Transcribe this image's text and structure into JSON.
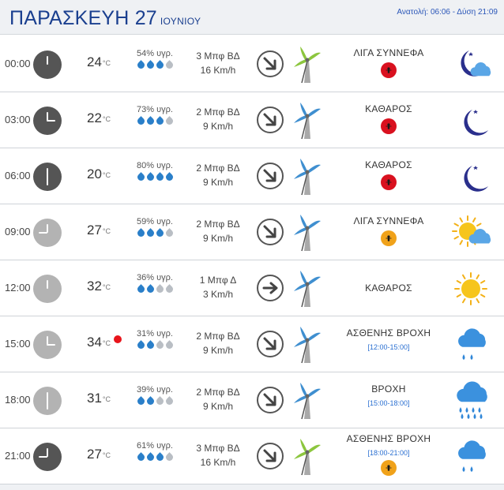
{
  "header": {
    "day": "ΠΑΡΑΣΚΕΥΗ 27",
    "month": "ΙΟΥΝΙΟΥ",
    "sun_times": "Ανατολή: 06:06  - Δύση 21:09"
  },
  "units": {
    "degree": "°C"
  },
  "colors": {
    "title_blue": "#1a3f8f",
    "drop_on": "#2a7fc9",
    "drop_off": "#b9bec4",
    "alert_red": "#d9111f",
    "alert_orange": "#f0a21a",
    "period_blue": "#2a6fd1"
  },
  "rows": [
    {
      "time": "00:00",
      "clock_type": "night",
      "temp": "24",
      "warning": false,
      "humidity": "54% υγρ.",
      "drops_filled": 3,
      "wind_bft": "3 Μπφ ΒΔ",
      "wind_kmh": "16 Km/h",
      "wind_dir": "arrow-down-right-icon",
      "turbine": "turbine-green-icon",
      "condition": "ΛΙΓΑ ΣΥΝΝΕΦΑ",
      "period": "",
      "alert": "red",
      "weather_icon": "moon-cloud-icon"
    },
    {
      "time": "03:00",
      "clock_type": "night",
      "temp": "22",
      "warning": false,
      "humidity": "73% υγρ.",
      "drops_filled": 3,
      "wind_bft": "2 Μπφ ΒΔ",
      "wind_kmh": "9 Km/h",
      "wind_dir": "arrow-down-right-icon",
      "turbine": "turbine-blue-icon",
      "condition": "ΚΑΘΑΡΟΣ",
      "period": "",
      "alert": "red",
      "weather_icon": "moon-star-icon"
    },
    {
      "time": "06:00",
      "clock_type": "night",
      "temp": "20",
      "warning": false,
      "humidity": "80% υγρ.",
      "drops_filled": 4,
      "wind_bft": "2 Μπφ ΒΔ",
      "wind_kmh": "9 Km/h",
      "wind_dir": "arrow-down-right-icon",
      "turbine": "turbine-blue-icon",
      "condition": "ΚΑΘΑΡΟΣ",
      "period": "",
      "alert": "red",
      "weather_icon": "moon-star-icon"
    },
    {
      "time": "09:00",
      "clock_type": "day",
      "temp": "27",
      "warning": false,
      "humidity": "59% υγρ.",
      "drops_filled": 3,
      "wind_bft": "2 Μπφ ΒΔ",
      "wind_kmh": "9 Km/h",
      "wind_dir": "arrow-down-right-icon",
      "turbine": "turbine-blue-icon",
      "condition": "ΛΙΓΑ ΣΥΝΝΕΦΑ",
      "period": "",
      "alert": "orange",
      "weather_icon": "sun-cloud-icon"
    },
    {
      "time": "12:00",
      "clock_type": "day",
      "temp": "32",
      "warning": false,
      "humidity": "36% υγρ.",
      "drops_filled": 2,
      "wind_bft": "1 Μπφ Δ",
      "wind_kmh": "3 Km/h",
      "wind_dir": "arrow-right-icon",
      "turbine": "turbine-blue-icon",
      "condition": "ΚΑΘΑΡΟΣ",
      "period": "",
      "alert": "",
      "weather_icon": "sun-icon"
    },
    {
      "time": "15:00",
      "clock_type": "day",
      "temp": "34",
      "warning": true,
      "humidity": "31% υγρ.",
      "drops_filled": 2,
      "wind_bft": "2 Μπφ ΒΔ",
      "wind_kmh": "9 Km/h",
      "wind_dir": "arrow-down-right-icon",
      "turbine": "turbine-blue-icon",
      "condition": "ΑΣΘΕΝΗΣ ΒΡΟΧΗ",
      "period": "[12:00-15:00]",
      "alert": "",
      "weather_icon": "cloud-light-rain-icon"
    },
    {
      "time": "18:00",
      "clock_type": "day",
      "temp": "31",
      "warning": false,
      "humidity": "39% υγρ.",
      "drops_filled": 2,
      "wind_bft": "2 Μπφ ΒΔ",
      "wind_kmh": "9 Km/h",
      "wind_dir": "arrow-down-right-icon",
      "turbine": "turbine-blue-icon",
      "condition": "ΒΡΟΧΗ",
      "period": "[15:00-18:00]",
      "alert": "",
      "weather_icon": "cloud-rain-icon"
    },
    {
      "time": "21:00",
      "clock_type": "night",
      "temp": "27",
      "warning": false,
      "humidity": "61% υγρ.",
      "drops_filled": 3,
      "wind_bft": "3 Μπφ ΒΔ",
      "wind_kmh": "16 Km/h",
      "wind_dir": "arrow-down-right-icon",
      "turbine": "turbine-green-icon",
      "condition": "ΑΣΘΕΝΗΣ ΒΡΟΧΗ",
      "period": "[18:00-21:00]",
      "alert": "orange",
      "weather_icon": "cloud-light-rain-icon"
    }
  ]
}
